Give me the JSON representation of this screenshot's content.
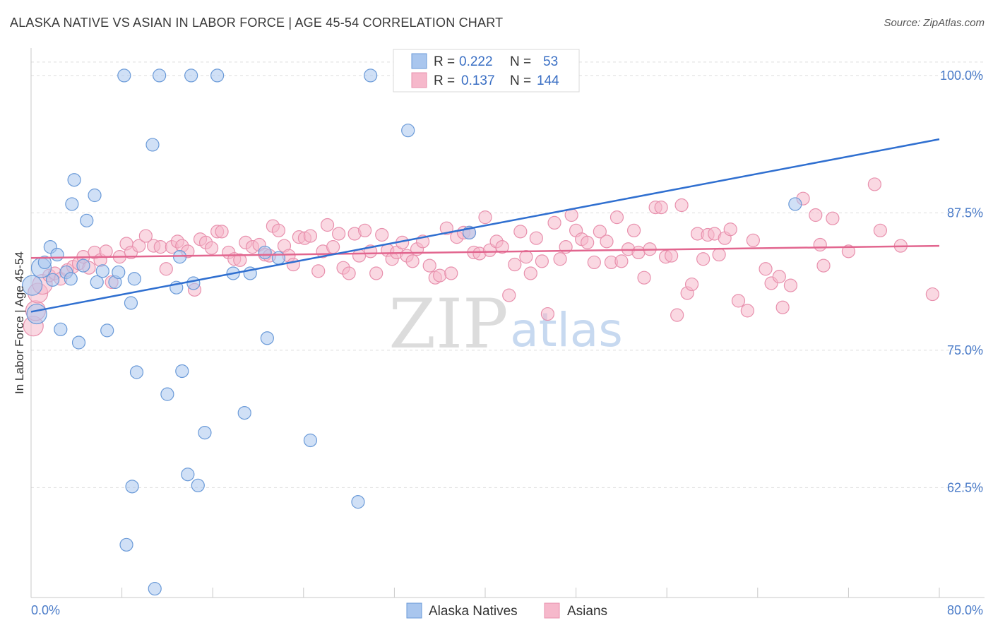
{
  "title": "ALASKA NATIVE VS ASIAN IN LABOR FORCE | AGE 45-54 CORRELATION CHART",
  "source": "Source: ZipAtlas.com",
  "watermark": {
    "zip": "ZIP",
    "atlas": "atlas"
  },
  "colors": {
    "blue_fill": "#a9c6ee",
    "blue_stroke": "#6a9ad8",
    "blue_line": "#2f6fd0",
    "pink_fill": "#f6b8cb",
    "pink_stroke": "#e890ad",
    "pink_line": "#e2668f",
    "tick_text": "#4a7bc8",
    "grid": "#dddddd"
  },
  "chart_data": {
    "type": "scatter",
    "ylabel": "In Labor Force | Age 45-54",
    "xlabel": "",
    "xlim": [
      0,
      80
    ],
    "ylim": [
      52.5,
      102.5
    ],
    "x_ticks": [
      "0.0%",
      "80.0%"
    ],
    "y_ticks": [
      {
        "value": 100.0,
        "label": "100.0%"
      },
      {
        "value": 87.5,
        "label": "87.5%"
      },
      {
        "value": 75.0,
        "label": "75.0%"
      },
      {
        "value": 62.5,
        "label": "62.5%"
      }
    ],
    "legend": {
      "r_label": "R =",
      "n_label": "N =",
      "entries": [
        {
          "series": "Alaska Natives",
          "r": "0.222",
          "n": "53"
        },
        {
          "series": "Asians",
          "r": "0.137",
          "n": "144"
        }
      ]
    },
    "series": [
      {
        "name": "Alaska Natives",
        "trend": {
          "x": [
            0,
            80
          ],
          "y": [
            78.5,
            94.2
          ]
        },
        "points": [
          [
            0.1,
            80.9
          ],
          [
            0.5,
            78.3
          ],
          [
            0.9,
            82.5
          ],
          [
            1.2,
            83.0
          ],
          [
            1.7,
            84.4
          ],
          [
            1.9,
            81.4
          ],
          [
            2.3,
            83.7
          ],
          [
            2.6,
            76.9
          ],
          [
            3.1,
            82.1
          ],
          [
            3.6,
            88.3
          ],
          [
            3.8,
            90.5
          ],
          [
            4.2,
            75.7
          ],
          [
            4.6,
            82.7
          ],
          [
            4.9,
            86.8
          ],
          [
            5.6,
            89.1
          ],
          [
            5.8,
            81.2
          ],
          [
            6.3,
            82.2
          ],
          [
            6.7,
            76.8
          ],
          [
            7.4,
            81.2
          ],
          [
            7.7,
            82.1
          ],
          [
            8.2,
            100.0
          ],
          [
            8.4,
            57.3
          ],
          [
            8.8,
            79.3
          ],
          [
            8.9,
            62.6
          ],
          [
            9.3,
            73.0
          ],
          [
            10.7,
            93.7
          ],
          [
            10.9,
            53.3
          ],
          [
            11.3,
            100.0
          ],
          [
            12.0,
            71.0
          ],
          [
            12.8,
            80.7
          ],
          [
            13.1,
            83.5
          ],
          [
            13.3,
            73.1
          ],
          [
            13.8,
            63.7
          ],
          [
            14.1,
            100.0
          ],
          [
            14.3,
            81.1
          ],
          [
            14.7,
            62.7
          ],
          [
            15.3,
            67.5
          ],
          [
            16.4,
            100.0
          ],
          [
            17.8,
            82.0
          ],
          [
            18.8,
            69.3
          ],
          [
            19.3,
            82.0
          ],
          [
            20.6,
            83.9
          ],
          [
            20.8,
            76.1
          ],
          [
            21.8,
            83.4
          ],
          [
            24.6,
            66.8
          ],
          [
            28.8,
            61.2
          ],
          [
            29.9,
            100.0
          ],
          [
            33.2,
            95.0
          ],
          [
            38.6,
            85.7
          ],
          [
            44.9,
            100.0
          ],
          [
            67.3,
            88.3
          ],
          [
            3.5,
            81.5
          ],
          [
            9.1,
            81.5
          ]
        ]
      },
      {
        "name": "Asians",
        "trend": {
          "x": [
            0,
            80
          ],
          "y": [
            83.4,
            84.5
          ]
        },
        "points": [
          [
            0.2,
            77.2
          ],
          [
            0.4,
            78.6
          ],
          [
            0.6,
            80.2
          ],
          [
            1.0,
            81.0
          ],
          [
            1.6,
            81.8
          ],
          [
            2.1,
            82.0
          ],
          [
            2.6,
            81.5
          ],
          [
            3.2,
            82.3
          ],
          [
            3.7,
            82.6
          ],
          [
            4.2,
            82.9
          ],
          [
            4.6,
            83.5
          ],
          [
            5.1,
            82.5
          ],
          [
            5.6,
            83.9
          ],
          [
            6.1,
            83.2
          ],
          [
            6.6,
            84.0
          ],
          [
            7.1,
            81.2
          ],
          [
            7.8,
            83.5
          ],
          [
            8.4,
            84.7
          ],
          [
            8.8,
            83.9
          ],
          [
            9.5,
            84.5
          ],
          [
            10.1,
            85.4
          ],
          [
            10.8,
            84.5
          ],
          [
            11.4,
            84.4
          ],
          [
            11.9,
            82.4
          ],
          [
            12.4,
            84.4
          ],
          [
            12.9,
            84.9
          ],
          [
            13.3,
            84.5
          ],
          [
            13.8,
            84.0
          ],
          [
            14.4,
            80.5
          ],
          [
            14.9,
            85.1
          ],
          [
            15.4,
            84.8
          ],
          [
            15.9,
            84.3
          ],
          [
            16.4,
            85.8
          ],
          [
            16.8,
            85.8
          ],
          [
            17.4,
            83.9
          ],
          [
            17.9,
            83.3
          ],
          [
            18.4,
            83.2
          ],
          [
            18.9,
            84.8
          ],
          [
            19.5,
            84.4
          ],
          [
            20.1,
            84.6
          ],
          [
            20.6,
            83.7
          ],
          [
            21.0,
            83.6
          ],
          [
            21.3,
            86.3
          ],
          [
            21.8,
            85.9
          ],
          [
            22.3,
            84.5
          ],
          [
            22.7,
            83.6
          ],
          [
            23.1,
            82.8
          ],
          [
            23.6,
            85.3
          ],
          [
            24.1,
            85.2
          ],
          [
            24.6,
            85.4
          ],
          [
            25.3,
            82.2
          ],
          [
            25.7,
            84.0
          ],
          [
            26.1,
            86.4
          ],
          [
            26.6,
            84.4
          ],
          [
            27.1,
            85.6
          ],
          [
            27.5,
            82.5
          ],
          [
            28.0,
            82.0
          ],
          [
            28.5,
            85.6
          ],
          [
            28.9,
            83.6
          ],
          [
            29.4,
            85.9
          ],
          [
            29.9,
            84.0
          ],
          [
            30.4,
            82.0
          ],
          [
            30.9,
            85.5
          ],
          [
            31.4,
            84.1
          ],
          [
            31.8,
            83.3
          ],
          [
            32.2,
            83.9
          ],
          [
            32.7,
            84.8
          ],
          [
            33.1,
            83.6
          ],
          [
            33.6,
            83.1
          ],
          [
            34.0,
            84.2
          ],
          [
            34.5,
            84.9
          ],
          [
            35.1,
            82.7
          ],
          [
            35.6,
            81.6
          ],
          [
            36.0,
            81.8
          ],
          [
            36.6,
            86.1
          ],
          [
            37.0,
            82.0
          ],
          [
            37.5,
            85.3
          ],
          [
            38.1,
            85.7
          ],
          [
            38.6,
            85.7
          ],
          [
            39.0,
            83.9
          ],
          [
            39.5,
            83.8
          ],
          [
            40.0,
            87.1
          ],
          [
            40.4,
            84.1
          ],
          [
            41.0,
            84.9
          ],
          [
            41.5,
            84.4
          ],
          [
            42.1,
            80.0
          ],
          [
            42.6,
            82.8
          ],
          [
            43.1,
            85.8
          ],
          [
            43.6,
            83.5
          ],
          [
            44.0,
            82.0
          ],
          [
            44.5,
            85.2
          ],
          [
            45.0,
            83.1
          ],
          [
            45.5,
            78.3
          ],
          [
            46.1,
            86.6
          ],
          [
            46.6,
            83.3
          ],
          [
            47.1,
            84.4
          ],
          [
            47.6,
            87.3
          ],
          [
            48.0,
            85.9
          ],
          [
            48.5,
            85.1
          ],
          [
            49.0,
            84.8
          ],
          [
            49.6,
            83.0
          ],
          [
            50.1,
            85.8
          ],
          [
            50.7,
            84.9
          ],
          [
            51.1,
            83.0
          ],
          [
            51.6,
            87.1
          ],
          [
            52.0,
            83.1
          ],
          [
            52.6,
            84.2
          ],
          [
            53.1,
            85.9
          ],
          [
            53.5,
            83.9
          ],
          [
            54.0,
            81.6
          ],
          [
            54.5,
            84.2
          ],
          [
            55.0,
            88.0
          ],
          [
            55.5,
            88.0
          ],
          [
            55.9,
            83.5
          ],
          [
            56.4,
            83.6
          ],
          [
            56.9,
            78.2
          ],
          [
            57.3,
            88.2
          ],
          [
            57.8,
            80.2
          ],
          [
            58.2,
            81.0
          ],
          [
            58.7,
            85.6
          ],
          [
            59.2,
            83.3
          ],
          [
            59.6,
            85.5
          ],
          [
            60.2,
            85.6
          ],
          [
            60.6,
            83.7
          ],
          [
            61.1,
            85.2
          ],
          [
            61.6,
            86.0
          ],
          [
            62.3,
            79.5
          ],
          [
            63.1,
            78.6
          ],
          [
            63.6,
            85.0
          ],
          [
            64.7,
            82.4
          ],
          [
            65.2,
            81.1
          ],
          [
            65.9,
            81.7
          ],
          [
            66.2,
            78.9
          ],
          [
            66.9,
            80.9
          ],
          [
            68.0,
            88.8
          ],
          [
            69.1,
            87.3
          ],
          [
            69.5,
            84.6
          ],
          [
            69.8,
            82.7
          ],
          [
            70.6,
            87.0
          ],
          [
            72.0,
            84.0
          ],
          [
            74.3,
            90.1
          ],
          [
            74.8,
            85.9
          ],
          [
            76.6,
            84.5
          ],
          [
            79.4,
            80.1
          ]
        ]
      }
    ]
  }
}
